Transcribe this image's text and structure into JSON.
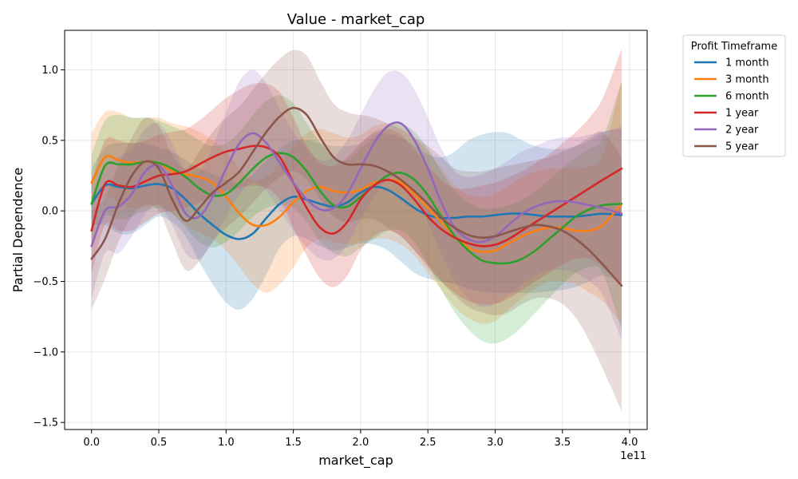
{
  "chart_data": {
    "type": "line",
    "title": "Value - market_cap",
    "xlabel": "market_cap",
    "ylabel": "Partial Dependence",
    "x_offset_label": "1e11",
    "xlim": [
      -0.2,
      4.13
    ],
    "ylim": [
      -1.55,
      1.28
    ],
    "x_ticks": [
      0.0,
      0.5,
      1.0,
      1.5,
      2.0,
      2.5,
      3.0,
      3.5,
      4.0
    ],
    "x_tick_labels": [
      "0.0",
      "0.5",
      "1.0",
      "1.5",
      "2.0",
      "2.5",
      "3.0",
      "3.5",
      "4.0"
    ],
    "y_ticks": [
      -1.5,
      -1.0,
      -0.5,
      0.0,
      0.5,
      1.0
    ],
    "y_tick_labels": [
      "−1.5",
      "−1.0",
      "−0.5",
      "0.0",
      "0.5",
      "1.0"
    ],
    "grid": true,
    "legend": {
      "title": "Profit Timeframe",
      "placement": "outside-right"
    },
    "x": [
      0.0,
      0.1,
      0.2,
      0.3,
      0.4,
      0.5,
      0.6,
      0.7,
      0.8,
      0.9,
      1.0,
      1.1,
      1.2,
      1.3,
      1.4,
      1.5,
      1.6,
      1.7,
      1.8,
      1.9,
      2.0,
      2.1,
      2.2,
      2.3,
      2.4,
      2.5,
      2.6,
      2.7,
      2.8,
      2.9,
      3.0,
      3.1,
      3.2,
      3.3,
      3.4,
      3.5,
      3.6,
      3.7,
      3.8,
      3.94
    ],
    "series": [
      {
        "name": "1 month",
        "color": "#1f77b4",
        "values": [
          0.05,
          0.18,
          0.17,
          0.16,
          0.18,
          0.19,
          0.16,
          0.08,
          -0.02,
          -0.1,
          -0.17,
          -0.2,
          -0.16,
          -0.05,
          0.05,
          0.1,
          0.08,
          0.05,
          0.03,
          0.06,
          0.13,
          0.17,
          0.15,
          0.09,
          0.02,
          -0.03,
          -0.05,
          -0.05,
          -0.04,
          -0.04,
          -0.03,
          -0.02,
          -0.02,
          -0.03,
          -0.04,
          -0.04,
          -0.04,
          -0.03,
          -0.02,
          -0.03
        ],
        "lower": [
          -0.1,
          -0.1,
          -0.16,
          -0.16,
          -0.1,
          -0.04,
          -0.08,
          -0.18,
          -0.36,
          -0.52,
          -0.65,
          -0.7,
          -0.62,
          -0.45,
          -0.26,
          -0.18,
          -0.2,
          -0.25,
          -0.28,
          -0.26,
          -0.23,
          -0.24,
          -0.28,
          -0.36,
          -0.44,
          -0.48,
          -0.5,
          -0.52,
          -0.55,
          -0.57,
          -0.58,
          -0.58,
          -0.58,
          -0.58,
          -0.57,
          -0.56,
          -0.54,
          -0.5,
          -0.46,
          -0.5
        ],
        "upper": [
          0.3,
          0.45,
          0.48,
          0.48,
          0.48,
          0.45,
          0.42,
          0.36,
          0.3,
          0.26,
          0.22,
          0.2,
          0.26,
          0.36,
          0.44,
          0.5,
          0.5,
          0.48,
          0.46,
          0.46,
          0.48,
          0.55,
          0.55,
          0.52,
          0.46,
          0.4,
          0.38,
          0.42,
          0.5,
          0.54,
          0.56,
          0.55,
          0.5,
          0.46,
          0.44,
          0.44,
          0.46,
          0.5,
          0.56,
          0.58
        ]
      },
      {
        "name": "3 month",
        "color": "#ff7f0e",
        "values": [
          0.2,
          0.38,
          0.36,
          0.34,
          0.35,
          0.34,
          0.28,
          0.26,
          0.24,
          0.2,
          0.1,
          -0.02,
          -0.1,
          -0.1,
          -0.04,
          0.06,
          0.14,
          0.17,
          0.14,
          0.13,
          0.15,
          0.2,
          0.22,
          0.2,
          0.12,
          0.02,
          -0.08,
          -0.18,
          -0.26,
          -0.29,
          -0.28,
          -0.23,
          -0.18,
          -0.14,
          -0.12,
          -0.12,
          -0.14,
          -0.14,
          -0.1,
          0.05
        ],
        "lower": [
          -0.02,
          0.1,
          0.06,
          0.02,
          0.02,
          0.04,
          -0.02,
          -0.1,
          -0.15,
          -0.2,
          -0.28,
          -0.4,
          -0.52,
          -0.58,
          -0.52,
          -0.4,
          -0.26,
          -0.2,
          -0.22,
          -0.24,
          -0.22,
          -0.2,
          -0.2,
          -0.24,
          -0.32,
          -0.44,
          -0.56,
          -0.68,
          -0.76,
          -0.8,
          -0.78,
          -0.7,
          -0.62,
          -0.55,
          -0.5,
          -0.5,
          -0.52,
          -0.58,
          -0.64,
          -0.8
        ],
        "upper": [
          0.55,
          0.7,
          0.7,
          0.66,
          0.66,
          0.66,
          0.62,
          0.6,
          0.56,
          0.5,
          0.42,
          0.3,
          0.22,
          0.24,
          0.34,
          0.46,
          0.55,
          0.58,
          0.55,
          0.52,
          0.54,
          0.6,
          0.62,
          0.6,
          0.52,
          0.42,
          0.3,
          0.18,
          0.12,
          0.1,
          0.12,
          0.18,
          0.24,
          0.28,
          0.3,
          0.3,
          0.3,
          0.32,
          0.4,
          0.92
        ]
      },
      {
        "name": "6 month",
        "color": "#2ca02c",
        "values": [
          0.05,
          0.32,
          0.33,
          0.33,
          0.35,
          0.34,
          0.3,
          0.24,
          0.16,
          0.11,
          0.12,
          0.2,
          0.3,
          0.38,
          0.41,
          0.38,
          0.28,
          0.14,
          0.04,
          0.03,
          0.1,
          0.18,
          0.25,
          0.27,
          0.22,
          0.11,
          -0.04,
          -0.18,
          -0.28,
          -0.35,
          -0.37,
          -0.37,
          -0.34,
          -0.28,
          -0.2,
          -0.12,
          -0.04,
          0.01,
          0.04,
          0.05
        ],
        "lower": [
          -0.25,
          -0.04,
          -0.06,
          -0.04,
          0.0,
          0.02,
          -0.02,
          -0.12,
          -0.22,
          -0.26,
          -0.22,
          -0.14,
          -0.04,
          0.02,
          0.04,
          0.02,
          -0.08,
          -0.22,
          -0.3,
          -0.32,
          -0.26,
          -0.2,
          -0.14,
          -0.14,
          -0.22,
          -0.38,
          -0.56,
          -0.72,
          -0.84,
          -0.92,
          -0.94,
          -0.9,
          -0.82,
          -0.72,
          -0.62,
          -0.52,
          -0.44,
          -0.4,
          -0.44,
          -0.85
        ],
        "upper": [
          0.4,
          0.64,
          0.68,
          0.66,
          0.66,
          0.64,
          0.6,
          0.56,
          0.5,
          0.46,
          0.48,
          0.56,
          0.68,
          0.78,
          0.82,
          0.76,
          0.62,
          0.48,
          0.38,
          0.36,
          0.44,
          0.52,
          0.6,
          0.62,
          0.56,
          0.44,
          0.28,
          0.14,
          0.06,
          0.02,
          0.02,
          0.04,
          0.08,
          0.14,
          0.22,
          0.3,
          0.38,
          0.44,
          0.52,
          0.92
        ]
      },
      {
        "name": "1 year",
        "color": "#d62728",
        "values": [
          -0.14,
          0.19,
          0.18,
          0.17,
          0.21,
          0.25,
          0.26,
          0.28,
          0.33,
          0.38,
          0.42,
          0.44,
          0.46,
          0.45,
          0.38,
          0.2,
          0.02,
          -0.12,
          -0.16,
          -0.08,
          0.08,
          0.18,
          0.22,
          0.18,
          0.08,
          -0.04,
          -0.13,
          -0.19,
          -0.23,
          -0.25,
          -0.24,
          -0.2,
          -0.14,
          -0.08,
          -0.02,
          0.04,
          0.1,
          0.16,
          0.22,
          0.3
        ],
        "lower": [
          -0.45,
          -0.1,
          -0.14,
          -0.14,
          -0.08,
          -0.02,
          0.0,
          0.02,
          0.06,
          0.1,
          0.14,
          0.16,
          0.18,
          0.16,
          0.08,
          -0.12,
          -0.32,
          -0.48,
          -0.54,
          -0.46,
          -0.28,
          -0.18,
          -0.14,
          -0.18,
          -0.28,
          -0.4,
          -0.5,
          -0.58,
          -0.64,
          -0.66,
          -0.66,
          -0.62,
          -0.56,
          -0.5,
          -0.44,
          -0.38,
          -0.34,
          -0.34,
          -0.4,
          -0.55
        ],
        "upper": [
          0.2,
          0.5,
          0.5,
          0.48,
          0.5,
          0.54,
          0.56,
          0.58,
          0.64,
          0.72,
          0.8,
          0.86,
          0.9,
          0.9,
          0.84,
          0.66,
          0.46,
          0.34,
          0.32,
          0.38,
          0.48,
          0.56,
          0.58,
          0.54,
          0.44,
          0.32,
          0.22,
          0.16,
          0.16,
          0.18,
          0.2,
          0.24,
          0.28,
          0.34,
          0.4,
          0.48,
          0.56,
          0.66,
          0.8,
          1.15
        ]
      },
      {
        "name": "2 year",
        "color": "#9467bd",
        "values": [
          -0.25,
          0.0,
          0.03,
          0.12,
          0.28,
          0.32,
          0.18,
          -0.02,
          -0.04,
          0.1,
          0.3,
          0.48,
          0.55,
          0.48,
          0.34,
          0.2,
          0.08,
          0.01,
          0.02,
          0.12,
          0.3,
          0.48,
          0.6,
          0.62,
          0.5,
          0.3,
          0.06,
          -0.12,
          -0.2,
          -0.22,
          -0.18,
          -0.1,
          -0.02,
          0.03,
          0.06,
          0.07,
          0.06,
          0.04,
          0.02,
          -0.02
        ],
        "lower": [
          -0.62,
          -0.3,
          -0.3,
          -0.18,
          -0.02,
          0.04,
          -0.1,
          -0.3,
          -0.34,
          -0.22,
          -0.04,
          0.12,
          0.2,
          0.14,
          0.0,
          -0.14,
          -0.26,
          -0.34,
          -0.34,
          -0.24,
          -0.06,
          0.1,
          0.22,
          0.24,
          0.12,
          -0.08,
          -0.3,
          -0.5,
          -0.62,
          -0.68,
          -0.66,
          -0.6,
          -0.52,
          -0.46,
          -0.42,
          -0.42,
          -0.44,
          -0.5,
          -0.6,
          -0.92
        ],
        "upper": [
          0.1,
          0.3,
          0.38,
          0.44,
          0.58,
          0.62,
          0.48,
          0.28,
          0.28,
          0.46,
          0.7,
          0.92,
          1.0,
          0.9,
          0.72,
          0.56,
          0.44,
          0.36,
          0.38,
          0.5,
          0.68,
          0.86,
          0.98,
          0.98,
          0.86,
          0.66,
          0.44,
          0.28,
          0.24,
          0.26,
          0.3,
          0.36,
          0.42,
          0.46,
          0.5,
          0.52,
          0.52,
          0.54,
          0.56,
          0.6
        ]
      },
      {
        "name": "5 year",
        "color": "#8c564b",
        "values": [
          -0.34,
          -0.2,
          0.05,
          0.25,
          0.35,
          0.3,
          0.08,
          -0.07,
          0.02,
          0.13,
          0.2,
          0.28,
          0.42,
          0.56,
          0.67,
          0.73,
          0.68,
          0.52,
          0.38,
          0.33,
          0.33,
          0.32,
          0.28,
          0.22,
          0.14,
          0.05,
          -0.05,
          -0.12,
          -0.17,
          -0.19,
          -0.18,
          -0.15,
          -0.12,
          -0.1,
          -0.11,
          -0.14,
          -0.2,
          -0.28,
          -0.38,
          -0.53
        ],
        "lower": [
          -0.7,
          -0.48,
          -0.22,
          -0.04,
          0.04,
          0.0,
          -0.22,
          -0.42,
          -0.36,
          -0.22,
          -0.12,
          -0.04,
          0.06,
          0.16,
          0.24,
          0.28,
          0.22,
          0.08,
          -0.04,
          -0.08,
          -0.06,
          -0.06,
          -0.12,
          -0.18,
          -0.28,
          -0.38,
          -0.5,
          -0.6,
          -0.68,
          -0.72,
          -0.74,
          -0.72,
          -0.66,
          -0.62,
          -0.62,
          -0.66,
          -0.76,
          -0.92,
          -1.12,
          -1.42
        ],
        "upper": [
          0.0,
          0.1,
          0.32,
          0.52,
          0.66,
          0.6,
          0.4,
          0.3,
          0.42,
          0.56,
          0.66,
          0.74,
          0.86,
          0.98,
          1.08,
          1.14,
          1.1,
          0.92,
          0.76,
          0.7,
          0.68,
          0.66,
          0.62,
          0.58,
          0.52,
          0.46,
          0.38,
          0.3,
          0.28,
          0.28,
          0.3,
          0.32,
          0.34,
          0.36,
          0.38,
          0.42,
          0.46,
          0.52,
          0.56,
          0.38
        ]
      }
    ]
  }
}
